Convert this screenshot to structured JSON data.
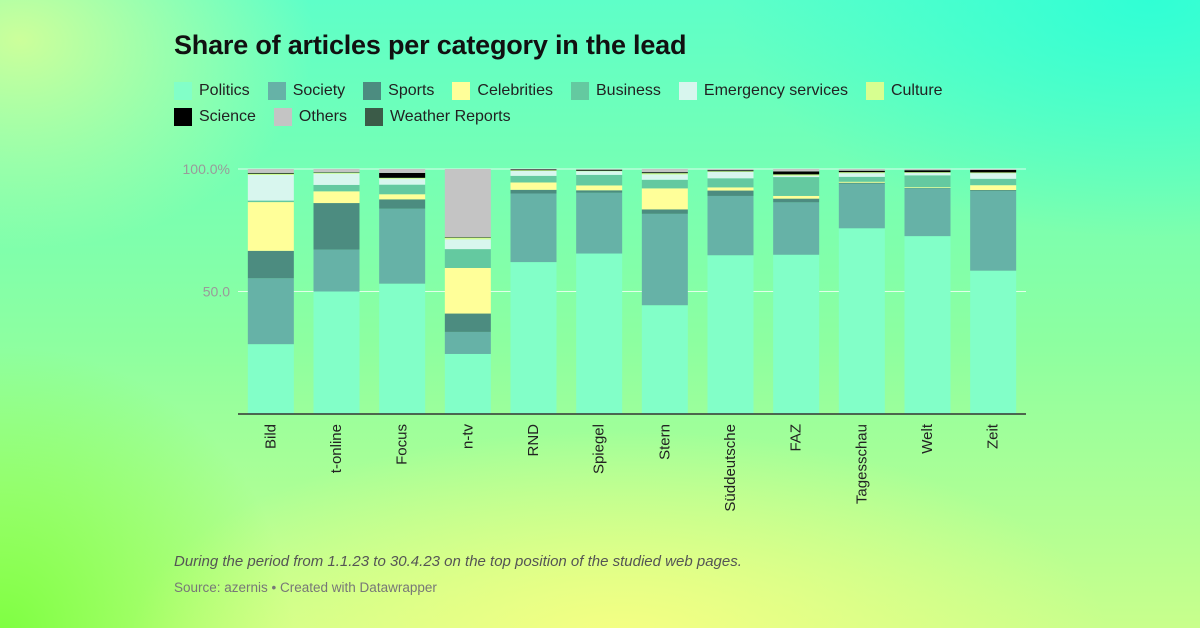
{
  "chart_data": {
    "type": "bar",
    "stacked": true,
    "title": "Share of articles per category in the lead",
    "categories": [
      "Bild",
      "t-online",
      "Focus",
      "n-tv",
      "RND",
      "Spiegel",
      "Stern",
      "Süddeutsche",
      "FAZ",
      "Tagesschau",
      "Welt",
      "Zeit"
    ],
    "series": [
      {
        "name": "Politics",
        "color": "#82ffc8",
        "values": [
          28.5,
          50.0,
          53.2,
          24.5,
          62.0,
          65.5,
          44.4,
          64.8,
          65.0,
          75.8,
          72.6,
          58.5
        ]
      },
      {
        "name": "Society",
        "color": "#66b2a7",
        "values": [
          26.9,
          17.1,
          30.6,
          9.0,
          28.0,
          24.8,
          37.3,
          24.2,
          21.4,
          18.2,
          19.5,
          32.5
        ]
      },
      {
        "name": "Sports",
        "color": "#4c8c80",
        "values": [
          11.2,
          19.0,
          3.8,
          7.5,
          1.5,
          1.0,
          1.8,
          2.2,
          1.5,
          0.4,
          0.2,
          0.4
        ]
      },
      {
        "name": "Celebrities",
        "color": "#ffff99",
        "values": [
          19.9,
          4.8,
          2.1,
          18.6,
          3.0,
          2.0,
          8.6,
          1.3,
          1.1,
          0.4,
          0.3,
          2.0
        ]
      },
      {
        "name": "Business",
        "color": "#64c9a0",
        "values": [
          0.6,
          2.6,
          3.9,
          7.7,
          2.7,
          4.3,
          3.5,
          3.7,
          7.7,
          2.0,
          4.8,
          2.6
        ]
      },
      {
        "name": "Emergency services",
        "color": "#d8f6ee",
        "values": [
          10.5,
          4.6,
          2.4,
          4.0,
          2.0,
          1.5,
          2.2,
          2.6,
          0.6,
          1.5,
          1.0,
          2.3
        ]
      },
      {
        "name": "Culture",
        "color": "#d7ff90",
        "values": [
          0.5,
          0.4,
          0.4,
          0.7,
          0.3,
          0.2,
          0.5,
          0.3,
          0.5,
          0.4,
          0.3,
          0.3
        ]
      },
      {
        "name": "Science",
        "color": "#000000",
        "values": [
          0.3,
          0.2,
          2.0,
          0.2,
          0.3,
          0.4,
          0.4,
          0.4,
          1.2,
          0.6,
          0.8,
          1.0
        ]
      },
      {
        "name": "Others",
        "color": "#c4c4c4",
        "values": [
          1.6,
          1.3,
          1.6,
          27.8,
          0.2,
          0.3,
          1.3,
          0.5,
          1.0,
          0.7,
          0.5,
          0.4
        ]
      },
      {
        "name": "Weather Reports",
        "color": "#3b5b48",
        "values": [
          0.0,
          0.0,
          0.0,
          0.0,
          0.0,
          0.0,
          0.0,
          0.0,
          0.0,
          0.0,
          0.0,
          0.0
        ]
      }
    ],
    "ylim": [
      0,
      100
    ],
    "yticks": [
      {
        "value": 50,
        "label": "50.0"
      },
      {
        "value": 100,
        "label": "100.0%"
      }
    ],
    "grid": true,
    "legend": "top",
    "xlabel": "",
    "ylabel": ""
  },
  "notes": "During the period from 1.1.23 to 30.4.23 on the top position of the studied web pages.",
  "source": "Source: azernis • Created with Datawrapper"
}
